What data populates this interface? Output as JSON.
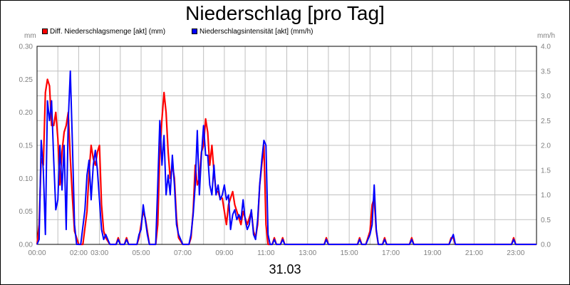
{
  "chart_data": {
    "type": "line",
    "title": "Niederschlag [pro Tag]",
    "xlabel": "31.03",
    "ylabel_left": "mm",
    "ylabel_right": "mm/h",
    "ylim_left": [
      0,
      0.3
    ],
    "ylim_right": [
      0,
      4.0
    ],
    "xlim_hours": [
      0,
      24
    ],
    "x_ticks": [
      "00:00",
      "02:00",
      "03:00",
      "05:00",
      "07:00",
      "09:00",
      "11:00",
      "13:00",
      "15:00",
      "17:00",
      "19:00",
      "21:00",
      "23:00"
    ],
    "y_ticks_left": [
      "0.00",
      "0.05",
      "0.10",
      "0.15",
      "0.20",
      "0.25",
      "0.30"
    ],
    "y_ticks_right": [
      "0.0",
      "0.5",
      "1.0",
      "1.5",
      "2.0",
      "2.5",
      "3.0",
      "3.5",
      "4.0"
    ],
    "grid": true,
    "legend_position": "top-left",
    "series": [
      {
        "name": "Diff. Niederschlagsmenge [akt] (mm)",
        "color": "#ff0000",
        "axis": "left",
        "points": [
          [
            0.0,
            0
          ],
          [
            0.1,
            0.03
          ],
          [
            0.2,
            0.13
          ],
          [
            0.3,
            0.12
          ],
          [
            0.4,
            0.23
          ],
          [
            0.5,
            0.25
          ],
          [
            0.6,
            0.24
          ],
          [
            0.7,
            0.18
          ],
          [
            0.8,
            0.18
          ],
          [
            0.9,
            0.2
          ],
          [
            1.0,
            0.16
          ],
          [
            1.1,
            0.09
          ],
          [
            1.2,
            0.14
          ],
          [
            1.3,
            0.17
          ],
          [
            1.4,
            0.18
          ],
          [
            1.5,
            0.2
          ],
          [
            1.6,
            0.13
          ],
          [
            1.7,
            0.07
          ],
          [
            1.8,
            0.02
          ],
          [
            2.0,
            0
          ],
          [
            2.2,
            0
          ],
          [
            2.4,
            0.05
          ],
          [
            2.5,
            0.11
          ],
          [
            2.6,
            0.15
          ],
          [
            2.7,
            0.13
          ],
          [
            2.8,
            0.12
          ],
          [
            2.9,
            0.14
          ],
          [
            3.0,
            0.15
          ],
          [
            3.1,
            0.06
          ],
          [
            3.2,
            0.02
          ],
          [
            3.3,
            0.01
          ],
          [
            3.5,
            0
          ],
          [
            3.8,
            0
          ],
          [
            3.9,
            0.01
          ],
          [
            4.0,
            0
          ],
          [
            4.2,
            0
          ],
          [
            4.3,
            0.01
          ],
          [
            4.4,
            0
          ],
          [
            4.8,
            0
          ],
          [
            4.9,
            0.01
          ],
          [
            5.0,
            0.03
          ],
          [
            5.1,
            0.05
          ],
          [
            5.2,
            0.04
          ],
          [
            5.3,
            0.02
          ],
          [
            5.4,
            0
          ],
          [
            5.7,
            0
          ],
          [
            5.8,
            0.03
          ],
          [
            5.9,
            0.14
          ],
          [
            6.0,
            0.19
          ],
          [
            6.1,
            0.23
          ],
          [
            6.2,
            0.2
          ],
          [
            6.3,
            0.14
          ],
          [
            6.4,
            0.1
          ],
          [
            6.5,
            0.12
          ],
          [
            6.6,
            0.1
          ],
          [
            6.7,
            0.04
          ],
          [
            6.8,
            0.01
          ],
          [
            7.0,
            0
          ],
          [
            7.3,
            0
          ],
          [
            7.4,
            0.01
          ],
          [
            7.5,
            0.05
          ],
          [
            7.6,
            0.12
          ],
          [
            7.7,
            0.09
          ],
          [
            7.8,
            0.1
          ],
          [
            7.9,
            0.14
          ],
          [
            8.0,
            0.15
          ],
          [
            8.1,
            0.19
          ],
          [
            8.2,
            0.17
          ],
          [
            8.3,
            0.12
          ],
          [
            8.4,
            0.15
          ],
          [
            8.5,
            0.11
          ],
          [
            8.6,
            0.08
          ],
          [
            8.7,
            0.08
          ],
          [
            8.8,
            0.07
          ],
          [
            8.9,
            0.07
          ],
          [
            9.0,
            0.05
          ],
          [
            9.1,
            0.03
          ],
          [
            9.2,
            0.06
          ],
          [
            9.3,
            0.07
          ],
          [
            9.4,
            0.08
          ],
          [
            9.5,
            0.06
          ],
          [
            9.6,
            0.05
          ],
          [
            9.7,
            0.04
          ],
          [
            9.8,
            0.03
          ],
          [
            9.9,
            0.05
          ],
          [
            10.0,
            0.04
          ],
          [
            10.1,
            0.03
          ],
          [
            10.2,
            0.04
          ],
          [
            10.3,
            0.05
          ],
          [
            10.4,
            0.02
          ],
          [
            10.5,
            0.01
          ],
          [
            10.6,
            0.03
          ],
          [
            10.7,
            0.09
          ],
          [
            10.8,
            0.12
          ],
          [
            10.9,
            0.15
          ],
          [
            11.0,
            0.03
          ],
          [
            11.1,
            0
          ],
          [
            11.3,
            0
          ],
          [
            11.4,
            0.01
          ],
          [
            11.5,
            0
          ],
          [
            11.7,
            0
          ],
          [
            11.8,
            0.01
          ],
          [
            11.9,
            0
          ],
          [
            13.8,
            0
          ],
          [
            13.9,
            0.01
          ],
          [
            14.0,
            0
          ],
          [
            15.4,
            0
          ],
          [
            15.5,
            0.01
          ],
          [
            15.6,
            0
          ],
          [
            15.8,
            0
          ],
          [
            15.9,
            0.01
          ],
          [
            16.0,
            0.02
          ],
          [
            16.1,
            0.06
          ],
          [
            16.2,
            0.07
          ],
          [
            16.3,
            0.02
          ],
          [
            16.4,
            0
          ],
          [
            16.6,
            0
          ],
          [
            16.7,
            0.01
          ],
          [
            16.8,
            0
          ],
          [
            17.9,
            0
          ],
          [
            18.0,
            0.01
          ],
          [
            18.1,
            0
          ],
          [
            19.8,
            0
          ],
          [
            19.9,
            0.01
          ],
          [
            20.0,
            0.01
          ],
          [
            20.1,
            0
          ],
          [
            22.8,
            0
          ],
          [
            22.9,
            0.01
          ],
          [
            23.0,
            0
          ],
          [
            24.0,
            0
          ]
        ]
      },
      {
        "name": "Niederschlagsintensität [akt] (mm/h)",
        "color": "#0000ff",
        "axis": "right",
        "points": [
          [
            0.0,
            0
          ],
          [
            0.1,
            0.1
          ],
          [
            0.2,
            2.1
          ],
          [
            0.3,
            1.5
          ],
          [
            0.4,
            0.2
          ],
          [
            0.5,
            2.9
          ],
          [
            0.6,
            2.5
          ],
          [
            0.7,
            2.9
          ],
          [
            0.8,
            1.7
          ],
          [
            0.9,
            0.7
          ],
          [
            1.0,
            0.9
          ],
          [
            1.1,
            2.0
          ],
          [
            1.2,
            1.1
          ],
          [
            1.3,
            2.0
          ],
          [
            1.4,
            0.3
          ],
          [
            1.5,
            2.5
          ],
          [
            1.6,
            3.5
          ],
          [
            1.7,
            2.0
          ],
          [
            1.8,
            0.4
          ],
          [
            1.9,
            0
          ],
          [
            2.1,
            0
          ],
          [
            2.3,
            0.7
          ],
          [
            2.4,
            1.4
          ],
          [
            2.5,
            1.7
          ],
          [
            2.6,
            0.9
          ],
          [
            2.7,
            1.6
          ],
          [
            2.8,
            1.9
          ],
          [
            2.9,
            1.5
          ],
          [
            3.0,
            0.9
          ],
          [
            3.1,
            0.3
          ],
          [
            3.2,
            0.1
          ],
          [
            3.3,
            0.2
          ],
          [
            3.4,
            0.1
          ],
          [
            3.5,
            0
          ],
          [
            3.8,
            0
          ],
          [
            3.9,
            0.1
          ],
          [
            4.0,
            0
          ],
          [
            4.2,
            0
          ],
          [
            4.3,
            0.1
          ],
          [
            4.4,
            0
          ],
          [
            4.8,
            0
          ],
          [
            4.9,
            0.2
          ],
          [
            5.0,
            0.3
          ],
          [
            5.1,
            0.8
          ],
          [
            5.2,
            0.5
          ],
          [
            5.3,
            0.2
          ],
          [
            5.4,
            0
          ],
          [
            5.7,
            0
          ],
          [
            5.8,
            1.2
          ],
          [
            5.9,
            2.5
          ],
          [
            6.0,
            1.6
          ],
          [
            6.1,
            2.2
          ],
          [
            6.2,
            1.0
          ],
          [
            6.3,
            1.4
          ],
          [
            6.4,
            1.0
          ],
          [
            6.5,
            1.8
          ],
          [
            6.6,
            1.2
          ],
          [
            6.7,
            0.4
          ],
          [
            6.8,
            0.2
          ],
          [
            7.0,
            0
          ],
          [
            7.3,
            0
          ],
          [
            7.4,
            0.2
          ],
          [
            7.5,
            0.6
          ],
          [
            7.6,
            1.2
          ],
          [
            7.7,
            2.3
          ],
          [
            7.8,
            1.0
          ],
          [
            7.9,
            1.8
          ],
          [
            8.0,
            2.4
          ],
          [
            8.1,
            1.8
          ],
          [
            8.2,
            1.8
          ],
          [
            8.3,
            1.2
          ],
          [
            8.4,
            1.0
          ],
          [
            8.5,
            1.6
          ],
          [
            8.6,
            1.0
          ],
          [
            8.7,
            1.2
          ],
          [
            8.8,
            0.9
          ],
          [
            8.9,
            1.0
          ],
          [
            9.0,
            1.2
          ],
          [
            9.1,
            0.9
          ],
          [
            9.2,
            1.0
          ],
          [
            9.3,
            0.3
          ],
          [
            9.4,
            0.6
          ],
          [
            9.5,
            0.7
          ],
          [
            9.6,
            0.5
          ],
          [
            9.7,
            0.6
          ],
          [
            9.8,
            0.5
          ],
          [
            9.9,
            0.9
          ],
          [
            10.0,
            0.5
          ],
          [
            10.1,
            0.3
          ],
          [
            10.2,
            0.4
          ],
          [
            10.3,
            0.7
          ],
          [
            10.4,
            0.2
          ],
          [
            10.5,
            0.1
          ],
          [
            10.6,
            0.5
          ],
          [
            10.7,
            1.2
          ],
          [
            10.8,
            1.7
          ],
          [
            10.9,
            2.1
          ],
          [
            11.0,
            2.0
          ],
          [
            11.1,
            0.2
          ],
          [
            11.2,
            0
          ],
          [
            11.3,
            0
          ],
          [
            11.4,
            0.1
          ],
          [
            11.5,
            0
          ],
          [
            11.7,
            0
          ],
          [
            11.8,
            0.1
          ],
          [
            11.9,
            0
          ],
          [
            13.8,
            0
          ],
          [
            13.9,
            0.1
          ],
          [
            14.0,
            0
          ],
          [
            15.4,
            0
          ],
          [
            15.5,
            0.1
          ],
          [
            15.6,
            0
          ],
          [
            15.8,
            0
          ],
          [
            15.9,
            0.1
          ],
          [
            16.0,
            0.2
          ],
          [
            16.1,
            0.4
          ],
          [
            16.2,
            1.2
          ],
          [
            16.3,
            0.3
          ],
          [
            16.4,
            0
          ],
          [
            16.6,
            0
          ],
          [
            16.7,
            0.1
          ],
          [
            16.8,
            0
          ],
          [
            17.9,
            0
          ],
          [
            18.0,
            0.1
          ],
          [
            18.1,
            0
          ],
          [
            19.8,
            0
          ],
          [
            19.9,
            0.1
          ],
          [
            20.0,
            0.2
          ],
          [
            20.1,
            0
          ],
          [
            22.8,
            0
          ],
          [
            22.9,
            0.1
          ],
          [
            23.0,
            0
          ],
          [
            24.0,
            0
          ]
        ]
      }
    ]
  }
}
